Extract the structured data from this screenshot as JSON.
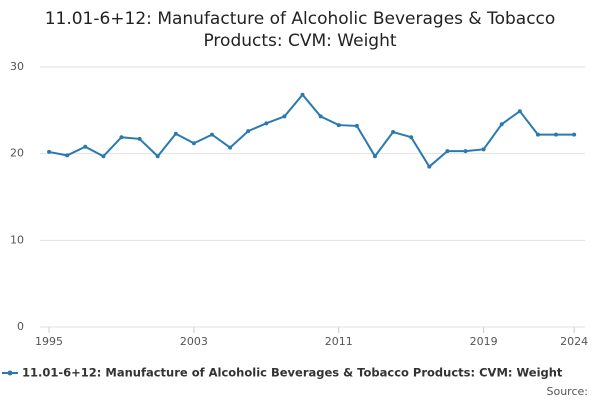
{
  "chart_data": {
    "type": "line",
    "title": "11.01-6+12: Manufacture of Alcoholic Beverages & Tobacco Products: CVM: Weight",
    "x": [
      1995,
      1996,
      1997,
      1998,
      1999,
      2000,
      2001,
      2002,
      2003,
      2004,
      2005,
      2006,
      2007,
      2008,
      2009,
      2010,
      2011,
      2012,
      2013,
      2014,
      2015,
      2016,
      2017,
      2018,
      2019,
      2020,
      2021,
      2022,
      2023,
      2024
    ],
    "series": [
      {
        "name": "11.01-6+12: Manufacture of Alcoholic Beverages & Tobacco Products: CVM: Weight",
        "color": "#2a7ab0",
        "values": [
          20.2,
          19.8,
          20.8,
          19.7,
          21.9,
          21.7,
          19.7,
          22.3,
          21.2,
          22.2,
          20.7,
          22.6,
          23.5,
          24.3,
          26.8,
          24.3,
          23.3,
          23.2,
          19.7,
          22.5,
          21.9,
          18.5,
          20.3,
          20.3,
          20.5,
          23.4,
          24.9,
          22.2,
          22.2,
          22.2
        ]
      }
    ],
    "xlim": [
      1994.5,
      2024.6
    ],
    "xticks": [
      1995,
      2003,
      2011,
      2019,
      2024
    ],
    "ylim": [
      0,
      30
    ],
    "yticks": [
      0,
      10,
      20,
      30
    ],
    "grid": true,
    "legend": "bottom",
    "source_label": "Source:"
  }
}
